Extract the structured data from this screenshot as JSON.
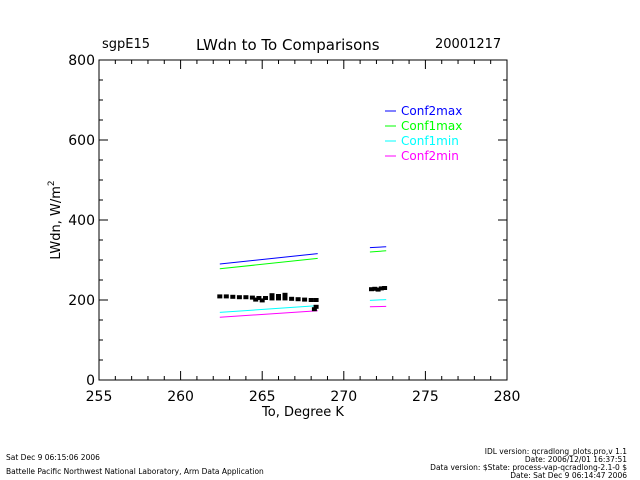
{
  "header": {
    "site": "sgpE15",
    "title": "LWdn to To Comparisons",
    "date": "20001217"
  },
  "footer": {
    "left_date": "Sat Dec  9 06:15:06 2006",
    "left_org": "Battelle Pacific Northwest National Laboratory, Arm Data Application",
    "right_line1": "IDL version: qcradlong_plots.pro,v 1.1",
    "right_line2": "Date: 2006/12/01 16:37:51",
    "right_line3": "Data version: $State: process-vap-qcradlong-2.1-0 $",
    "right_line4": "Date: Sat Dec  9 06:14:47 2006"
  },
  "chart_data": {
    "type": "line",
    "title": "LWdn to To Comparisons",
    "xlabel": "To, Degree K",
    "ylabel": "LWdn, W/m²",
    "ylabel_parts": {
      "main": "LWdn, W/m",
      "sup": "2"
    },
    "xlim": [
      255,
      280
    ],
    "ylim": [
      0,
      800
    ],
    "xticks": [
      "255",
      "260",
      "265",
      "270",
      "275",
      "280"
    ],
    "yticks": [
      "0",
      "200",
      "400",
      "600",
      "800"
    ],
    "legend_position": "top-right",
    "grid": false,
    "series": [
      {
        "name": "Conf2max",
        "color": "#0000ff",
        "segments": [
          {
            "x": [
              262.4,
              268.4
            ],
            "y": [
              290,
              316
            ]
          },
          {
            "x": [
              271.6,
              272.6
            ],
            "y": [
              331,
              333
            ]
          }
        ]
      },
      {
        "name": "Conf1max",
        "color": "#00ff00",
        "segments": [
          {
            "x": [
              262.4,
              268.4
            ],
            "y": [
              278,
              304
            ]
          },
          {
            "x": [
              271.6,
              272.6
            ],
            "y": [
              320,
              323
            ]
          }
        ]
      },
      {
        "name": "Conf1min",
        "color": "#00ffff",
        "segments": [
          {
            "x": [
              262.4,
              268.4
            ],
            "y": [
              169,
              186
            ]
          },
          {
            "x": [
              271.6,
              272.6
            ],
            "y": [
              199,
              201
            ]
          }
        ]
      },
      {
        "name": "Conf2min",
        "color": "#ff00ff",
        "segments": [
          {
            "x": [
              262.4,
              268.4
            ],
            "y": [
              157,
              173
            ]
          },
          {
            "x": [
              271.6,
              272.6
            ],
            "y": [
              183,
              184
            ]
          }
        ]
      }
    ],
    "observed": {
      "color": "#000000",
      "points": [
        [
          262.4,
          209
        ],
        [
          262.8,
          209
        ],
        [
          263.2,
          208
        ],
        [
          263.6,
          207
        ],
        [
          264.0,
          207
        ],
        [
          264.4,
          206
        ],
        [
          264.8,
          205
        ],
        [
          265.2,
          205
        ],
        [
          265.6,
          204
        ],
        [
          266.0,
          204
        ],
        [
          266.4,
          204
        ],
        [
          266.8,
          203
        ],
        [
          267.2,
          202
        ],
        [
          267.6,
          201
        ],
        [
          268.0,
          200
        ],
        [
          268.3,
          200
        ],
        [
          265.6,
          212
        ],
        [
          266.0,
          210
        ],
        [
          266.4,
          213
        ],
        [
          264.6,
          201
        ],
        [
          265.0,
          199
        ],
        [
          268.2,
          177
        ],
        [
          268.3,
          183
        ],
        [
          271.7,
          227
        ],
        [
          271.9,
          228
        ],
        [
          272.1,
          226
        ],
        [
          272.3,
          229
        ],
        [
          272.5,
          230
        ]
      ]
    }
  }
}
